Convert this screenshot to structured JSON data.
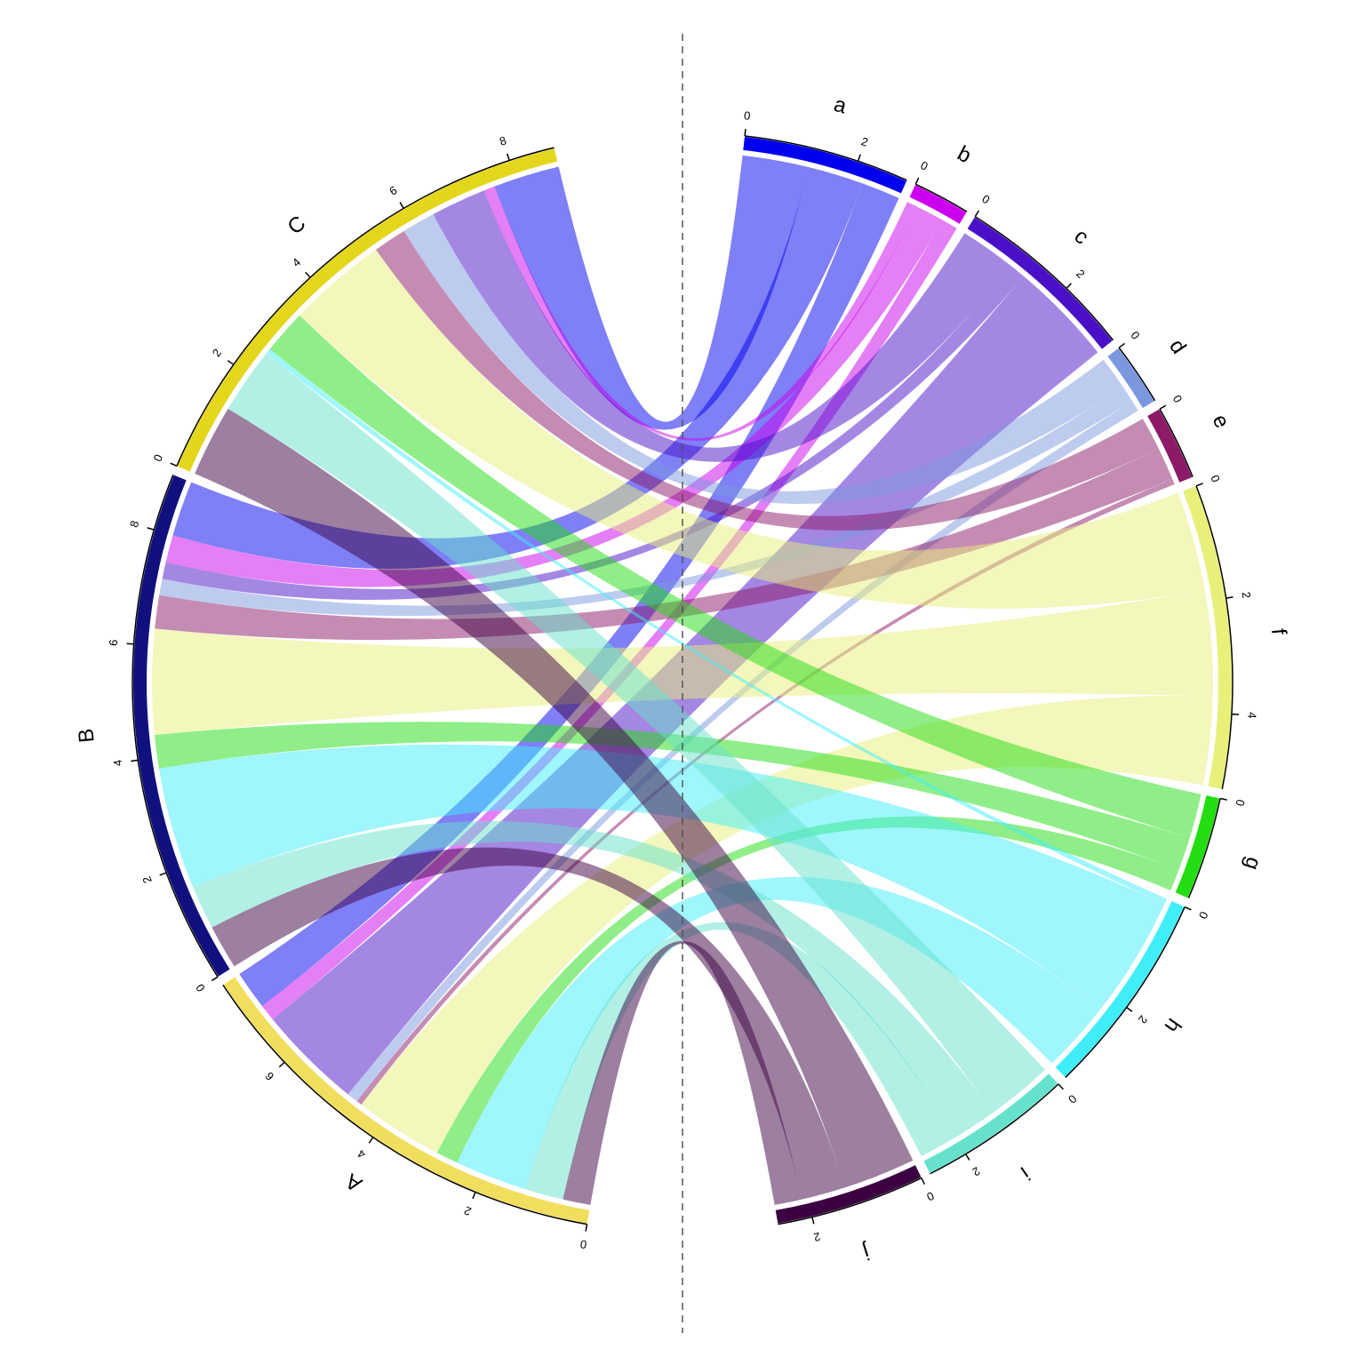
{
  "chart_data": {
    "type": "chord",
    "rows": [
      "A",
      "B",
      "C"
    ],
    "row_colors": [
      "#f2de5e",
      "#10107e",
      "#e4d61c"
    ],
    "columns": [
      "a",
      "b",
      "c",
      "d",
      "e",
      "f",
      "g",
      "h",
      "i",
      "j"
    ],
    "column_colors": [
      "#0000ee",
      "#cc00ee",
      "#4a10c8",
      "#7b97e0",
      "#8c1a68",
      "#e8f07a",
      "#22dd11",
      "#40eefa",
      "#66e2cc",
      "#3c0042"
    ],
    "matrix": [
      [
        0.7,
        0.3,
        1.9,
        0.2,
        0.1,
        1.6,
        0.4,
        1.3,
        0.7,
        0.5
      ],
      [
        1.0,
        0.5,
        0.3,
        0.3,
        0.6,
        1.9,
        0.6,
        2.2,
        0.8,
        0.8
      ],
      [
        1.2,
        0.2,
        1.0,
        0.6,
        0.6,
        1.8,
        0.8,
        0.1,
        1.2,
        1.3
      ]
    ],
    "row_ticks": [
      [
        0,
        2,
        4,
        6
      ],
      [
        0,
        2,
        4,
        6,
        8
      ],
      [
        0,
        2,
        4,
        6,
        8
      ]
    ],
    "column_ticks": [
      [
        0,
        2
      ],
      [
        0
      ],
      [
        0,
        2
      ],
      [
        0
      ],
      [
        0
      ],
      [
        0,
        2,
        4
      ],
      [
        0
      ],
      [
        0,
        2
      ],
      [
        0,
        2
      ],
      [
        0,
        2
      ]
    ]
  }
}
